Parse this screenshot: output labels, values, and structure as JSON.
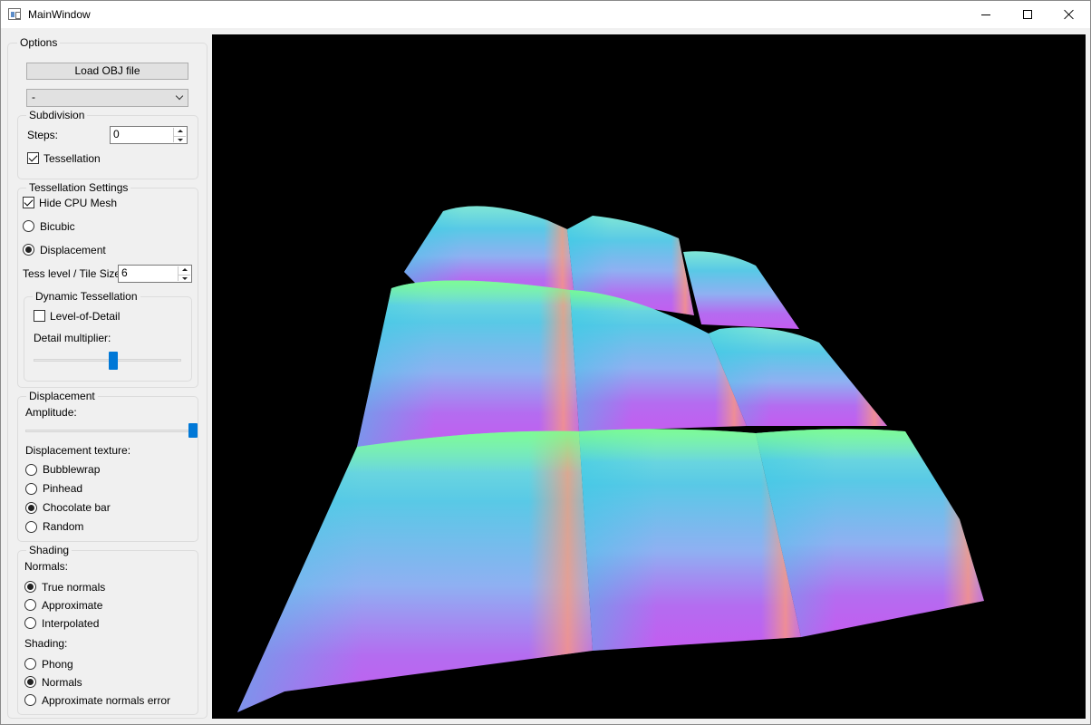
{
  "window": {
    "title": "MainWindow",
    "icon": "app-window-icon"
  },
  "options": {
    "legend": "Options",
    "load_button": "Load OBJ file",
    "model_select": {
      "value": "-"
    },
    "subdivision": {
      "legend": "Subdivision",
      "steps_label": "Steps:",
      "steps_value": "0",
      "tessellation_label": "Tessellation",
      "tessellation_checked": true
    },
    "tessellation_settings": {
      "legend": "Tessellation Settings",
      "hide_cpu_mesh_label": "Hide CPU Mesh",
      "hide_cpu_mesh_checked": true,
      "mode_options": [
        "Bicubic",
        "Displacement"
      ],
      "mode_selected": "Displacement",
      "tess_level_label": "Tess level / Tile Size",
      "tess_level_value": "6",
      "dynamic": {
        "legend": "Dynamic Tessellation",
        "lod_label": "Level-of-Detail",
        "lod_checked": false,
        "detail_multiplier_label": "Detail multiplier:",
        "detail_multiplier_level": 0.5
      }
    },
    "displacement": {
      "legend": "Displacement",
      "amplitude_label": "Amplitude:",
      "amplitude_level": 1.0,
      "texture_label": "Displacement texture:",
      "texture_options": [
        "Bubblewrap",
        "Pinhead",
        "Chocolate bar",
        "Random"
      ],
      "texture_selected": "Chocolate bar"
    },
    "shading": {
      "legend": "Shading",
      "normals_label": "Normals:",
      "normals_options": [
        "True normals",
        "Approximate",
        "Interpolated"
      ],
      "normals_selected": "True normals",
      "shading_label": "Shading:",
      "shading_options": [
        "Phong",
        "Normals",
        "Approximate normals error"
      ],
      "shading_selected": "Normals"
    }
  },
  "viewport": {
    "background": "#000000",
    "scene": "normal-shaded chocolate-bar displacement mesh"
  }
}
